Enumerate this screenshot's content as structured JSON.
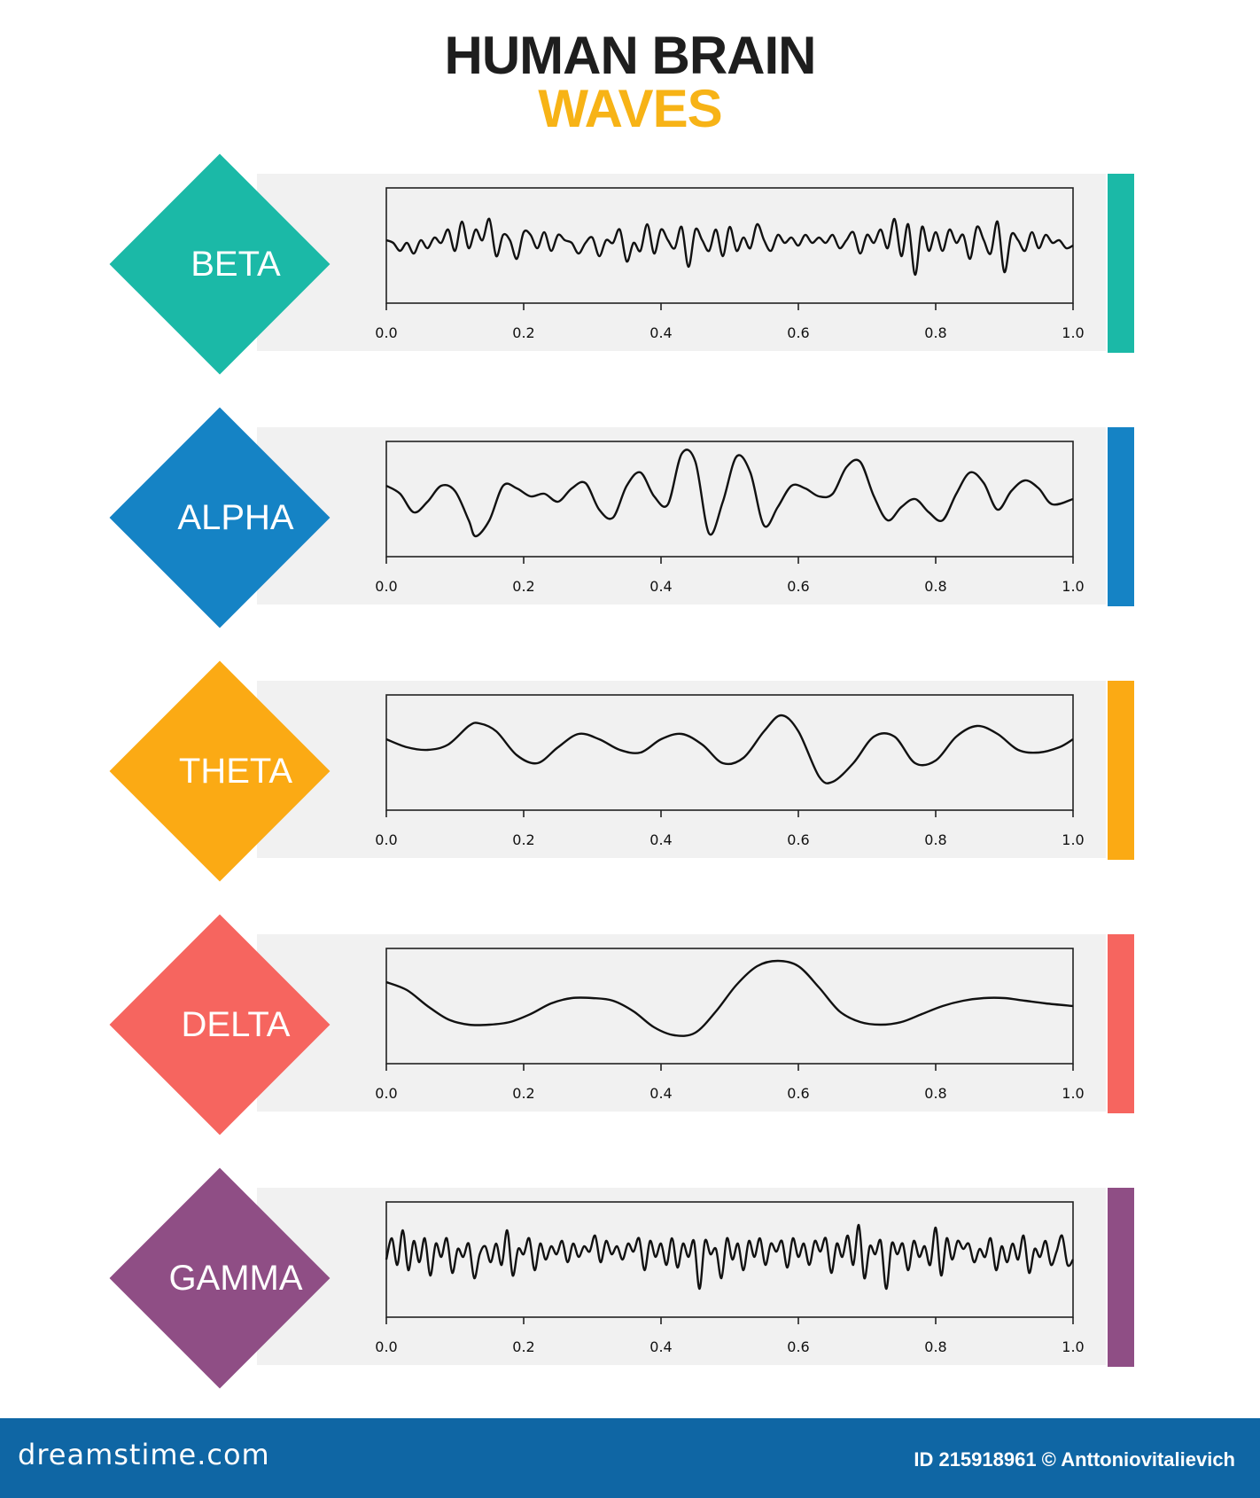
{
  "header": {
    "title_line1": "HUMAN BRAIN",
    "title_line2": "WAVES",
    "title_color": "#1e1e1e",
    "accent_color": "#f7b316"
  },
  "chart_data": [
    {
      "type": "line",
      "label": "BETA",
      "color": "#1bb9a7",
      "xlim": [
        0.0,
        1.0
      ],
      "x_ticks": [
        "0.0",
        "0.2",
        "0.4",
        "0.6",
        "0.8",
        "1.0"
      ],
      "series": [
        {
          "x": [
            0.0,
            0.01,
            0.02,
            0.03,
            0.04,
            0.05,
            0.06,
            0.07,
            0.08,
            0.09,
            0.1,
            0.11,
            0.12,
            0.13,
            0.14,
            0.15,
            0.16,
            0.17,
            0.18,
            0.19,
            0.2,
            0.21,
            0.22,
            0.23,
            0.24,
            0.25,
            0.26,
            0.27,
            0.28,
            0.29,
            0.3,
            0.31,
            0.32,
            0.33,
            0.34,
            0.35,
            0.36,
            0.37,
            0.38,
            0.39,
            0.4,
            0.41,
            0.42,
            0.43,
            0.44,
            0.45,
            0.46,
            0.47,
            0.48,
            0.49,
            0.5,
            0.51,
            0.52,
            0.53,
            0.54,
            0.55,
            0.56,
            0.57,
            0.58,
            0.59,
            0.6,
            0.61,
            0.62,
            0.63,
            0.64,
            0.65,
            0.66,
            0.67,
            0.68,
            0.69,
            0.7,
            0.71,
            0.72,
            0.73,
            0.74,
            0.75,
            0.76,
            0.77,
            0.78,
            0.79,
            0.8,
            0.81,
            0.82,
            0.83,
            0.84,
            0.85,
            0.86,
            0.87,
            0.88,
            0.89,
            0.9,
            0.91,
            0.92,
            0.93,
            0.94,
            0.95,
            0.96,
            0.97,
            0.98,
            0.99,
            1.0
          ],
          "y": [
            0.1,
            0.05,
            -0.1,
            0.05,
            -0.15,
            0.1,
            -0.05,
            0.15,
            0.05,
            0.3,
            -0.1,
            0.45,
            -0.05,
            0.3,
            0.1,
            0.5,
            -0.2,
            0.2,
            0.1,
            -0.25,
            0.25,
            0.2,
            -0.05,
            0.25,
            -0.1,
            0.2,
            0.1,
            0.05,
            -0.15,
            0.05,
            0.15,
            -0.2,
            0.1,
            0.05,
            0.3,
            -0.3,
            0.05,
            -0.1,
            0.4,
            -0.15,
            0.3,
            0.1,
            -0.05,
            0.35,
            -0.4,
            0.3,
            0.1,
            -0.1,
            0.3,
            -0.2,
            0.35,
            -0.1,
            0.15,
            -0.05,
            0.4,
            0.1,
            -0.1,
            0.2,
            0.05,
            0.15,
            0.0,
            0.2,
            0.05,
            0.15,
            0.05,
            0.2,
            -0.05,
            0.1,
            0.25,
            -0.15,
            0.2,
            0.05,
            0.3,
            -0.05,
            0.5,
            -0.2,
            0.4,
            -0.55,
            0.35,
            -0.1,
            0.25,
            -0.1,
            0.3,
            0.05,
            0.2,
            -0.25,
            0.35,
            0.1,
            -0.15,
            0.45,
            -0.5,
            0.2,
            0.1,
            -0.1,
            0.25,
            -0.05,
            0.2,
            0.05,
            0.1,
            -0.05,
            0.0
          ]
        }
      ]
    },
    {
      "type": "line",
      "label": "ALPHA",
      "color": "#1583c5",
      "xlim": [
        0.0,
        1.0
      ],
      "x_ticks": [
        "0.0",
        "0.2",
        "0.4",
        "0.6",
        "0.8",
        "1.0"
      ],
      "series": [
        {
          "x": [
            0.0,
            0.02,
            0.04,
            0.06,
            0.08,
            0.1,
            0.12,
            0.13,
            0.15,
            0.17,
            0.19,
            0.21,
            0.23,
            0.25,
            0.27,
            0.29,
            0.31,
            0.33,
            0.35,
            0.37,
            0.39,
            0.41,
            0.43,
            0.45,
            0.47,
            0.49,
            0.51,
            0.53,
            0.55,
            0.57,
            0.59,
            0.61,
            0.63,
            0.65,
            0.67,
            0.69,
            0.71,
            0.73,
            0.75,
            0.77,
            0.79,
            0.81,
            0.83,
            0.85,
            0.87,
            0.89,
            0.91,
            0.93,
            0.95,
            0.97,
            1.0
          ],
          "y": [
            0.25,
            0.1,
            -0.25,
            -0.05,
            0.25,
            0.15,
            -0.4,
            -0.7,
            -0.4,
            0.25,
            0.2,
            0.05,
            0.1,
            -0.05,
            0.2,
            0.3,
            -0.2,
            -0.35,
            0.25,
            0.5,
            0.05,
            -0.1,
            0.85,
            0.7,
            -0.65,
            -0.05,
            0.8,
            0.5,
            -0.5,
            -0.15,
            0.25,
            0.2,
            0.05,
            0.1,
            0.6,
            0.7,
            0.05,
            -0.4,
            -0.15,
            0.0,
            -0.25,
            -0.4,
            0.1,
            0.5,
            0.3,
            -0.2,
            0.15,
            0.35,
            0.2,
            -0.1,
            0.0
          ]
        }
      ]
    },
    {
      "type": "line",
      "label": "THETA",
      "color": "#fbaa14",
      "xlim": [
        0.0,
        1.0
      ],
      "x_ticks": [
        "0.0",
        "0.2",
        "0.4",
        "0.6",
        "0.8",
        "1.0"
      ],
      "series": [
        {
          "x": [
            0.0,
            0.03,
            0.06,
            0.09,
            0.12,
            0.135,
            0.16,
            0.19,
            0.22,
            0.25,
            0.28,
            0.31,
            0.34,
            0.37,
            0.4,
            0.43,
            0.46,
            0.49,
            0.52,
            0.55,
            0.575,
            0.6,
            0.63,
            0.65,
            0.68,
            0.71,
            0.74,
            0.77,
            0.8,
            0.83,
            0.86,
            0.89,
            0.92,
            0.95,
            0.98,
            1.0
          ],
          "y": [
            0.25,
            0.1,
            0.05,
            0.15,
            0.5,
            0.55,
            0.4,
            -0.05,
            -0.2,
            0.1,
            0.35,
            0.25,
            0.05,
            0.0,
            0.25,
            0.35,
            0.15,
            -0.2,
            -0.1,
            0.4,
            0.7,
            0.4,
            -0.45,
            -0.55,
            -0.2,
            0.3,
            0.3,
            -0.2,
            -0.15,
            0.3,
            0.5,
            0.35,
            0.05,
            0.0,
            0.1,
            0.25
          ]
        }
      ]
    },
    {
      "type": "line",
      "label": "DELTA",
      "color": "#f6655f",
      "xlim": [
        0.0,
        1.0
      ],
      "x_ticks": [
        "0.0",
        "0.2",
        "0.4",
        "0.6",
        "0.8",
        "1.0"
      ],
      "series": [
        {
          "x": [
            0.0,
            0.03,
            0.06,
            0.09,
            0.12,
            0.15,
            0.18,
            0.21,
            0.24,
            0.27,
            0.3,
            0.33,
            0.36,
            0.39,
            0.42,
            0.45,
            0.48,
            0.51,
            0.54,
            0.57,
            0.6,
            0.63,
            0.66,
            0.69,
            0.72,
            0.75,
            0.78,
            0.81,
            0.84,
            0.87,
            0.9,
            0.93,
            0.96,
            1.0
          ],
          "y": [
            0.45,
            0.3,
            0.0,
            -0.25,
            -0.35,
            -0.35,
            -0.3,
            -0.15,
            0.05,
            0.15,
            0.15,
            0.1,
            -0.1,
            -0.4,
            -0.55,
            -0.5,
            -0.1,
            0.4,
            0.75,
            0.85,
            0.75,
            0.35,
            -0.1,
            -0.3,
            -0.35,
            -0.3,
            -0.15,
            0.0,
            0.1,
            0.15,
            0.15,
            0.1,
            0.05,
            0.0
          ]
        }
      ]
    },
    {
      "type": "line",
      "label": "GAMMA",
      "color": "#8f4e85",
      "xlim": [
        0.0,
        1.0
      ],
      "x_ticks": [
        "0.0",
        "0.2",
        "0.4",
        "0.6",
        "0.8",
        "1.0"
      ],
      "series": [
        {
          "x": [
            0.0,
            0.008,
            0.016,
            0.024,
            0.032,
            0.04,
            0.048,
            0.056,
            0.064,
            0.072,
            0.08,
            0.088,
            0.096,
            0.104,
            0.112,
            0.12,
            0.128,
            0.136,
            0.144,
            0.152,
            0.16,
            0.168,
            0.176,
            0.184,
            0.192,
            0.2,
            0.208,
            0.216,
            0.224,
            0.232,
            0.24,
            0.248,
            0.256,
            0.264,
            0.272,
            0.28,
            0.288,
            0.296,
            0.304,
            0.312,
            0.32,
            0.328,
            0.336,
            0.344,
            0.352,
            0.36,
            0.368,
            0.376,
            0.384,
            0.392,
            0.4,
            0.408,
            0.416,
            0.424,
            0.432,
            0.44,
            0.448,
            0.456,
            0.464,
            0.472,
            0.48,
            0.488,
            0.496,
            0.504,
            0.512,
            0.52,
            0.528,
            0.536,
            0.544,
            0.552,
            0.56,
            0.568,
            0.576,
            0.584,
            0.592,
            0.6,
            0.608,
            0.616,
            0.624,
            0.632,
            0.64,
            0.648,
            0.656,
            0.664,
            0.672,
            0.68,
            0.688,
            0.696,
            0.704,
            0.712,
            0.72,
            0.728,
            0.736,
            0.744,
            0.752,
            0.76,
            0.768,
            0.776,
            0.784,
            0.792,
            0.8,
            0.808,
            0.816,
            0.824,
            0.832,
            0.84,
            0.848,
            0.856,
            0.864,
            0.872,
            0.88,
            0.888,
            0.896,
            0.904,
            0.912,
            0.92,
            0.928,
            0.936,
            0.944,
            0.952,
            0.96,
            0.968,
            0.976,
            0.984,
            0.992,
            1.0
          ],
          "y": [
            0.0,
            0.4,
            -0.1,
            0.55,
            -0.2,
            0.35,
            -0.05,
            0.4,
            -0.3,
            0.3,
            0.05,
            0.4,
            -0.25,
            0.2,
            0.05,
            0.3,
            -0.35,
            0.1,
            0.25,
            -0.05,
            0.3,
            -0.1,
            0.55,
            -0.3,
            0.2,
            0.1,
            0.4,
            -0.2,
            0.3,
            0.0,
            0.25,
            0.1,
            0.35,
            -0.05,
            0.3,
            0.05,
            0.25,
            0.15,
            0.45,
            -0.05,
            0.35,
            0.1,
            0.25,
            0.0,
            0.3,
            0.15,
            0.4,
            -0.2,
            0.35,
            0.05,
            0.3,
            -0.1,
            0.4,
            -0.15,
            0.3,
            0.05,
            0.35,
            -0.55,
            0.35,
            0.1,
            0.2,
            -0.35,
            0.4,
            0.0,
            0.3,
            -0.2,
            0.35,
            0.05,
            0.4,
            -0.1,
            0.3,
            0.15,
            0.35,
            -0.15,
            0.4,
            0.05,
            0.3,
            -0.1,
            0.35,
            0.15,
            0.4,
            -0.25,
            0.3,
            0.05,
            0.45,
            -0.1,
            0.65,
            -0.35,
            0.25,
            0.1,
            0.35,
            -0.55,
            0.3,
            0.1,
            0.3,
            -0.2,
            0.35,
            0.05,
            0.25,
            -0.1,
            0.6,
            -0.3,
            0.4,
            0.0,
            0.35,
            0.2,
            0.3,
            -0.05,
            0.2,
            0.05,
            0.4,
            -0.2,
            0.25,
            -0.05,
            0.3,
            0.0,
            0.45,
            -0.25,
            0.2,
            0.05,
            0.35,
            -0.1,
            0.15,
            0.45,
            -0.1,
            0.0
          ]
        }
      ]
    }
  ],
  "footer": {
    "brand": "dreamstime.com",
    "credit": "ID 215918961 © Anttoniovitalievich",
    "color": "#0f66a4"
  }
}
